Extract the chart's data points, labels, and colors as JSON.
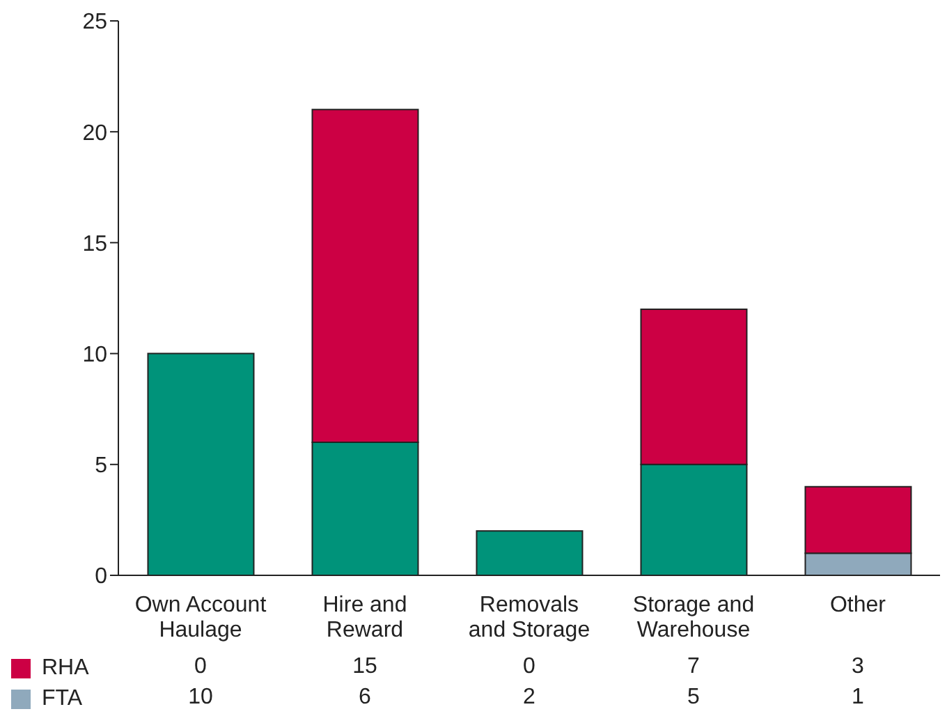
{
  "chart_data": {
    "type": "bar",
    "stacked": true,
    "categories": [
      "Own Account Haulage",
      "Hire and Reward",
      "Removals and Storage",
      "Storage and Warehouse",
      "Other"
    ],
    "series": [
      {
        "name": "FTA",
        "color": "#8fa9bc",
        "colors": [
          "#00937a",
          "#00937a",
          "#00937a",
          "#00937a",
          "#8fa9bc"
        ],
        "values": [
          10,
          6,
          2,
          5,
          1
        ]
      },
      {
        "name": "RHA",
        "color": "#cc0044",
        "values": [
          0,
          15,
          0,
          7,
          3
        ]
      }
    ],
    "ylim": [
      0,
      25
    ],
    "yticks": [
      0,
      5,
      10,
      15,
      20,
      25
    ],
    "legend": "bottom",
    "data_labels": true
  }
}
